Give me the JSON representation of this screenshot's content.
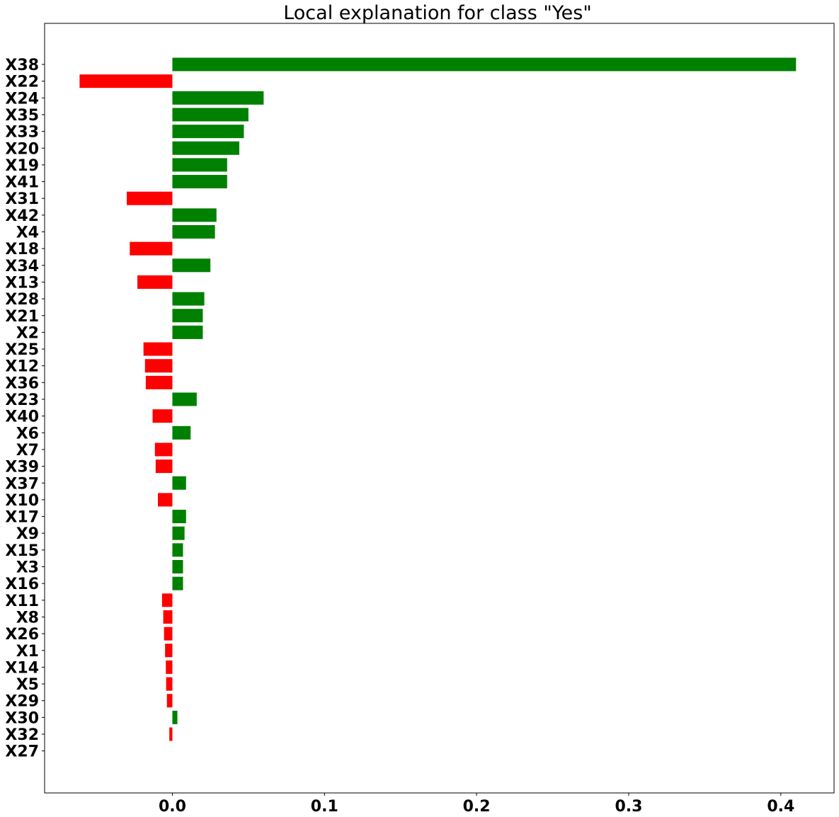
{
  "chart_data": {
    "type": "bar",
    "orientation": "horizontal",
    "title": "Local explanation for class \"Yes\"",
    "xlabel": "",
    "ylabel": "",
    "xlim": [
      -0.084,
      0.435
    ],
    "xticks": [
      0.0,
      0.1,
      0.2,
      0.3,
      0.4
    ],
    "xtick_labels": [
      "0.0",
      "0.1",
      "0.2",
      "0.3",
      "0.4"
    ],
    "grid": false,
    "legend": "none",
    "colors": {
      "positive": "#008000",
      "negative": "#ff0000"
    },
    "categories": [
      "X38",
      "X22",
      "X24",
      "X35",
      "X33",
      "X20",
      "X19",
      "X41",
      "X31",
      "X42",
      "X4",
      "X18",
      "X34",
      "X13",
      "X28",
      "X21",
      "X2",
      "X25",
      "X12",
      "X36",
      "X23",
      "X40",
      "X6",
      "X7",
      "X39",
      "X37",
      "X10",
      "X17",
      "X9",
      "X15",
      "X3",
      "X16",
      "X11",
      "X8",
      "X26",
      "X1",
      "X14",
      "X5",
      "X29",
      "X30",
      "X32",
      "X27"
    ],
    "values": [
      0.41,
      -0.061,
      0.06,
      0.05,
      0.047,
      0.044,
      0.036,
      0.036,
      -0.03,
      0.029,
      0.028,
      -0.028,
      0.025,
      -0.023,
      0.021,
      0.02,
      0.02,
      -0.019,
      -0.018,
      -0.0175,
      0.016,
      -0.013,
      0.012,
      -0.0115,
      -0.011,
      0.009,
      -0.0095,
      0.009,
      0.008,
      0.007,
      0.007,
      0.007,
      -0.0068,
      -0.006,
      -0.0055,
      -0.0048,
      -0.0043,
      -0.0041,
      -0.0036,
      0.0033,
      -0.002,
      0.0
    ]
  }
}
